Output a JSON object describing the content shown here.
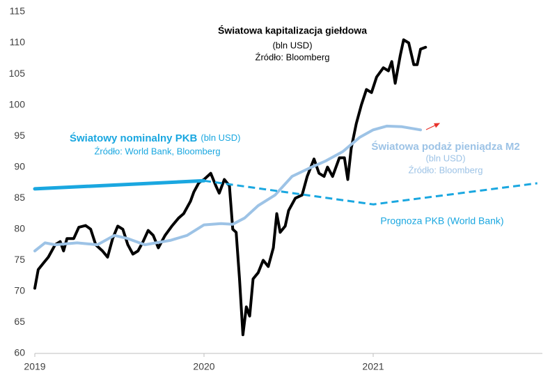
{
  "chart_data": {
    "type": "line",
    "xlim": [
      2019,
      2022
    ],
    "xticks": [
      2019,
      2020,
      2021
    ],
    "ylim": [
      60,
      115
    ],
    "yticks": [
      60,
      65,
      70,
      75,
      80,
      85,
      90,
      95,
      100,
      105,
      110,
      115
    ],
    "grid": false,
    "series": [
      {
        "name": "Światowa kapitalizacja giełdowa",
        "color": "#000000",
        "dashed": false,
        "x": [
          2019.0,
          2019.02,
          2019.05,
          2019.08,
          2019.12,
          2019.15,
          2019.17,
          2019.19,
          2019.23,
          2019.26,
          2019.3,
          2019.33,
          2019.36,
          2019.4,
          2019.43,
          2019.46,
          2019.49,
          2019.52,
          2019.55,
          2019.58,
          2019.61,
          2019.64,
          2019.67,
          2019.7,
          2019.73,
          2019.77,
          2019.81,
          2019.85,
          2019.88,
          2019.92,
          2019.94,
          2019.97,
          2020.0,
          2020.04,
          2020.07,
          2020.09,
          2020.12,
          2020.15,
          2020.17,
          2020.19,
          2020.21,
          2020.23,
          2020.25,
          2020.27,
          2020.29,
          2020.32,
          2020.35,
          2020.38,
          2020.41,
          2020.43,
          2020.45,
          2020.48,
          2020.5,
          2020.54,
          2020.58,
          2020.61,
          2020.65,
          2020.68,
          2020.71,
          2020.73,
          2020.76,
          2020.8,
          2020.83,
          2020.85,
          2020.87,
          2020.9,
          2020.93,
          2020.96,
          2020.99,
          2021.02,
          2021.06,
          2021.09,
          2021.11,
          2021.13,
          2021.16,
          2021.18,
          2021.21,
          2021.24,
          2021.26,
          2021.28,
          2021.31
        ],
        "values": [
          70.5,
          73.5,
          74.5,
          75.5,
          77.5,
          78,
          76.5,
          78.5,
          78.5,
          80.3,
          80.6,
          80,
          77.5,
          76.5,
          75.5,
          78.5,
          80.5,
          80,
          77.5,
          76,
          76.5,
          78,
          79.8,
          79,
          77,
          79,
          80.5,
          81.8,
          82.5,
          84.5,
          86,
          87.5,
          88,
          89,
          87,
          85.8,
          88,
          87,
          80,
          79.5,
          72,
          63,
          67.5,
          66,
          72,
          73,
          75,
          74,
          77,
          82.5,
          79.5,
          80.5,
          83,
          85,
          85.5,
          88.5,
          91.3,
          89,
          88.5,
          90,
          88.5,
          91.5,
          91.5,
          88,
          93,
          97,
          100,
          102.5,
          102,
          104.5,
          106,
          105.5,
          107,
          103.5,
          108,
          110.5,
          110,
          106.5,
          106.5,
          109,
          109.3
        ]
      },
      {
        "name": "Światowa podaż pieniądza M2",
        "color": "#9dc3e6",
        "dashed": false,
        "x": [
          2019.0,
          2019.06,
          2019.12,
          2019.25,
          2019.37,
          2019.47,
          2019.55,
          2019.65,
          2019.8,
          2019.9,
          2020.0,
          2020.1,
          2020.17,
          2020.24,
          2020.32,
          2020.42,
          2020.52,
          2020.62,
          2020.72,
          2020.82,
          2020.92,
          2021.0,
          2021.08,
          2021.17,
          2021.28
        ],
        "values": [
          76.5,
          77.8,
          77.5,
          77.8,
          77.5,
          79,
          78.5,
          77.5,
          78.2,
          79,
          80.7,
          80.9,
          80.8,
          81.8,
          83.8,
          85.5,
          88.5,
          89.8,
          91,
          92.5,
          94.8,
          96,
          96.6,
          96.5,
          96
        ]
      },
      {
        "name": "Światowy nominalny PKB",
        "color": "#1aa7e0",
        "dashed": false,
        "x": [
          2019.0,
          2020.0
        ],
        "values": [
          86.5,
          87.8
        ]
      },
      {
        "name": "Prognoza PKB (World Bank)",
        "color": "#1aa7e0",
        "dashed": true,
        "x": [
          2020.0,
          2021.0,
          2021.97
        ],
        "values": [
          87.8,
          84.0,
          87.4
        ]
      }
    ],
    "annotations": [
      "(bln USD)",
      "Źródło: Bloomberg",
      "(bln USD)",
      "Źródło: World Bank, Bloomberg",
      "(bln USD)",
      "Źródło: Bloomberg"
    ]
  }
}
